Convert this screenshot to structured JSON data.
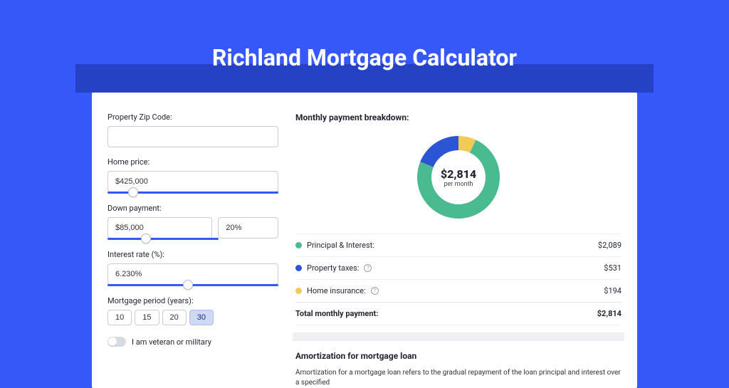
{
  "page": {
    "title": "Richland Mortgage Calculator"
  },
  "colors": {
    "page_bg": "#3758f9",
    "header_strip": "#2541c4",
    "card_bg": "#ffffff",
    "input_border": "#c9cdd4",
    "slider_active": "#3758f9",
    "slider_rest": "#d7dbe2",
    "selected_period_bg": "#cfd8f4"
  },
  "form": {
    "zip": {
      "label": "Property Zip Code:",
      "value": ""
    },
    "home_price": {
      "label": "Home price:",
      "value": "$425,000",
      "slider_pct": 12
    },
    "down_payment": {
      "label": "Down payment:",
      "amount": "$85,000",
      "pct": "20%",
      "slider_pct": 30
    },
    "interest": {
      "label": "Interest rate (%):",
      "value": "6.230%",
      "slider_pct": 44
    },
    "period": {
      "label": "Mortgage period (years):",
      "options": [
        "10",
        "15",
        "20",
        "30"
      ],
      "selected": "30"
    },
    "veteran": {
      "label": "I am veteran or military",
      "checked": false
    }
  },
  "breakdown": {
    "title": "Monthly payment breakdown:",
    "center_amount": "$2,814",
    "center_sub": "per month",
    "donut": {
      "slices": [
        {
          "label": "Principal & Interest",
          "value_num": 2089,
          "color": "#4aba91",
          "pct": 74.2
        },
        {
          "label": "Property taxes",
          "value_num": 531,
          "color": "#2b55d4",
          "pct": 18.9
        },
        {
          "label": "Home insurance",
          "value_num": 194,
          "color": "#f2cb57",
          "pct": 6.9
        }
      ],
      "thickness": 20
    },
    "items": [
      {
        "dot": "#4aba91",
        "label": "Principal & Interest:",
        "info": false,
        "value": "$2,089"
      },
      {
        "dot": "#2b55d4",
        "label": "Property taxes:",
        "info": true,
        "value": "$531"
      },
      {
        "dot": "#f2cb57",
        "label": "Home insurance:",
        "info": true,
        "value": "$194"
      }
    ],
    "total": {
      "label": "Total monthly payment:",
      "value": "$2,814"
    }
  },
  "amortization": {
    "title": "Amortization for mortgage loan",
    "text": "Amortization for a mortgage loan refers to the gradual repayment of the loan principal and interest over a specified"
  }
}
